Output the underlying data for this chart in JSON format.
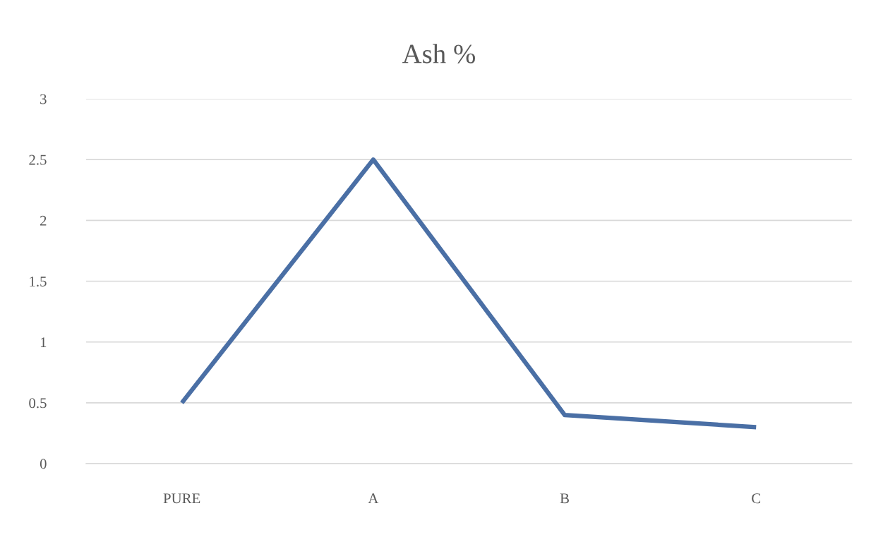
{
  "chart_data": {
    "type": "line",
    "title": "Ash %",
    "categories": [
      "PURE",
      "A",
      "B",
      "C"
    ],
    "series": [
      {
        "color": "#4a6fa5",
        "values": [
          0.5,
          2.5,
          0.4,
          0.3
        ]
      }
    ],
    "ylim": [
      0,
      3
    ],
    "yticks": [
      0,
      0.5,
      1,
      1.5,
      2,
      2.5,
      3
    ],
    "grid": "y",
    "marker": "none",
    "line_style": "solid"
  }
}
